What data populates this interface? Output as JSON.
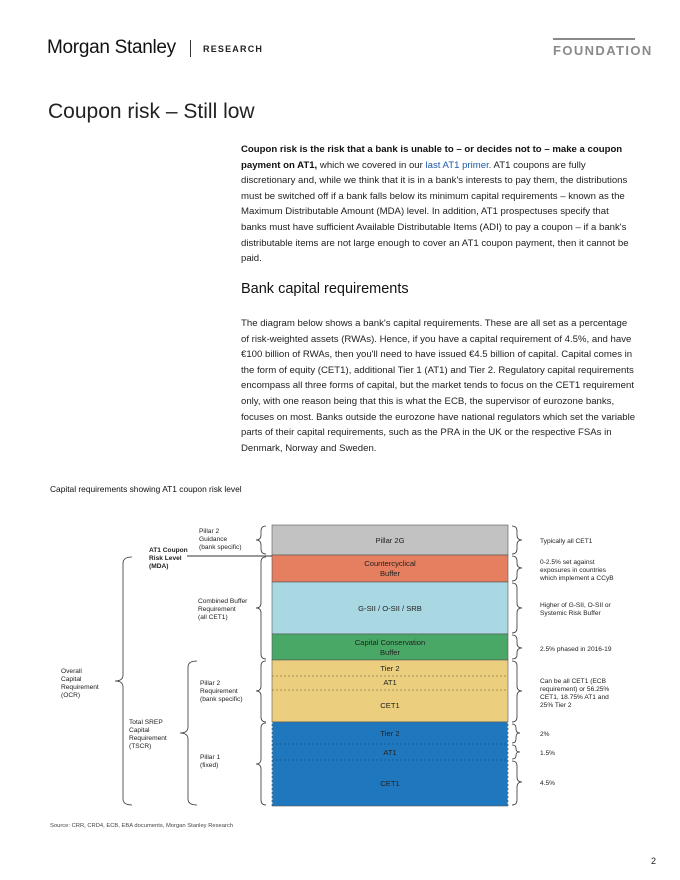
{
  "header": {
    "logo": "Morgan Stanley",
    "section": "RESEARCH",
    "series": "FOUNDATION"
  },
  "title": "Coupon risk – Still low",
  "intro": {
    "bold": "Coupon risk is the risk that a bank is unable to – or decides not to – make a coupon payment on AT1,",
    "pre_link": " which we covered in our ",
    "link": "last AT1 primer.",
    "post_link": " AT1 coupons are fully discretionary and, while we think that it is in a bank's interests to pay them, the distributions must be switched off if a bank falls below its minimum capital requirements – known as the Maximum Distributable Amount (MDA) level. In addition, AT1 prospectuses specify that banks must have sufficient Available Distributable Items (ADI) to pay a coupon – if a bank's distributable items are not large enough to cover an AT1 coupon payment, then it cannot be paid."
  },
  "subheading": "Bank capital requirements",
  "body": "The diagram below shows a bank's capital requirements. These are all set as a percentage of risk-weighted assets (RWAs). Hence, if you have a capital requirement of 4.5%, and have €100 billion of RWAs, then you'll need to have issued €4.5 billion of capital. Capital comes in the form of equity (CET1), additional Tier 1 (AT1) and Tier 2. Regulatory capital requirements encompass all three forms of capital, but the market tends to focus on the CET1 requirement only, with one reason being that this is what the ECB, the supervisor of eurozone banks, focuses on most. Banks outside the eurozone have national regulators which set the variable parts of their capital requirements, such as the PRA in the UK or the respective FSAs in Denmark, Norway and Sweden.",
  "figure": {
    "caption": "Capital requirements showing AT1 coupon risk level",
    "source": "Source: CRR, CRD4, ECB, EBA documents, Morgan Stanley Research",
    "blocks": {
      "pillar2g": "Pillar 2G",
      "ccyb_1": "Countercyclical",
      "ccyb_2": "Buffer",
      "gsii": "G-SII / O-SII / SRB",
      "ccb_1": "Capital Conservation",
      "ccb_2": "Buffer",
      "p2_tier2": "Tier 2",
      "p2_at1": "AT1",
      "p2_cet1": "CET1",
      "p1_tier2": "Tier 2",
      "p1_at1": "AT1",
      "p1_cet1": "CET1"
    },
    "left_labels": {
      "p2g_1": "Pillar 2",
      "p2g_2": "Guidance",
      "p2g_3": "(bank specific)",
      "mda_1": "AT1 Coupon",
      "mda_2": "Risk Level",
      "mda_3": "(MDA)",
      "cbr_1": "Combined Buffer",
      "cbr_2": "Requirement",
      "cbr_3": "(all CET1)",
      "ocr_1": "Overall",
      "ocr_2": "Capital",
      "ocr_3": "Requirement",
      "ocr_4": "(OCR)",
      "p2r_1": "Pillar 2",
      "p2r_2": "Requirement",
      "p2r_3": "(bank specific)",
      "tscr_1": "Total SREP",
      "tscr_2": "Capital",
      "tscr_3": "Requirement",
      "tscr_4": "(TSCR)",
      "p1_1": "Pillar 1",
      "p1_2": "(fixed)"
    },
    "right_labels": {
      "p2g": "Typically all CET1",
      "ccyb_1": "0-2.5% set against",
      "ccyb_2": "exposures in countries",
      "ccyb_3": "which implement a CCyB",
      "gsii_1": "Higher of G-SII, O-SII or",
      "gsii_2": "Systemic Risk Buffer",
      "ccb": "2.5% phased in 2016-19",
      "p2r_1": "Can be all CET1 (ECB",
      "p2r_2": "requirement)  or 56.25%",
      "p2r_3": "CET1, 18.75% AT1 and",
      "p2r_4": "25% Tier 2",
      "p1_tier2": "2%",
      "p1_at1": "1.5%",
      "p1_cet1": "4.5%"
    },
    "colors": {
      "pillar2g": "#c2c2c2",
      "ccyb": "#e67f5f",
      "gsii": "#a9d7e2",
      "ccb": "#4aa867",
      "pillar2r": "#ebce7e",
      "pillar1": "#1f78be"
    }
  },
  "page_number": "2"
}
